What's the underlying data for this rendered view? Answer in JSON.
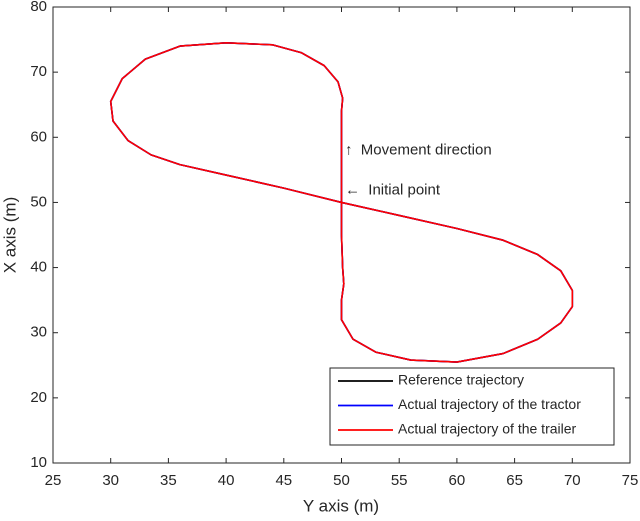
{
  "chart_data": {
    "type": "line",
    "x_label": "Y axis (m)",
    "y_label": "X axis (m)",
    "xlim": [
      25,
      75
    ],
    "xticks": [
      25,
      30,
      35,
      40,
      45,
      50,
      55,
      60,
      65,
      70,
      75
    ],
    "ylim": [
      10,
      80
    ],
    "yticks": [
      10,
      20,
      30,
      40,
      50,
      60,
      70,
      80
    ],
    "legend": "lower right",
    "grid": false,
    "annotations": [
      "↑  Movement direction",
      "←  Initial point"
    ],
    "x": [
      50,
      50,
      50,
      50,
      50.1,
      49.7,
      48.5,
      46.5,
      44,
      40,
      36,
      33,
      31,
      30,
      30.2,
      31.5,
      33.5,
      36,
      40,
      45,
      50,
      55,
      60,
      64,
      67,
      69,
      70,
      70,
      69,
      67,
      64,
      60,
      56,
      53,
      51,
      50,
      50,
      50.2,
      50.1,
      50,
      50
    ],
    "series": [
      {
        "name": "Reference trajectory",
        "color": "#000000",
        "values": [
          50,
          55,
          60,
          64,
          66,
          68.5,
          71,
          73,
          74.2,
          74.5,
          74,
          72,
          69,
          65.5,
          62.5,
          59.5,
          57.3,
          55.8,
          54.2,
          52.2,
          50,
          48,
          46,
          44.2,
          42,
          39.5,
          36.5,
          34,
          31.5,
          29,
          26.8,
          25.5,
          25.8,
          27,
          29,
          32,
          35,
          37.5,
          40,
          45,
          50
        ]
      },
      {
        "name": "Actual trajectory of the tractor",
        "color": "#0000ff",
        "values": [
          50,
          55,
          60,
          64,
          66,
          68.5,
          71,
          73,
          74.2,
          74.5,
          74,
          72,
          69,
          65.5,
          62.5,
          59.5,
          57.3,
          55.8,
          54.2,
          52.2,
          50,
          48,
          46,
          44.2,
          42,
          39.5,
          36.5,
          34,
          31.5,
          29,
          26.8,
          25.5,
          25.8,
          27,
          29,
          32,
          35,
          37.5,
          40,
          45,
          50
        ]
      },
      {
        "name": "Actual trajectory of the trailer",
        "color": "#ff0000",
        "values": [
          50,
          55,
          60,
          64,
          66,
          68.5,
          71,
          73,
          74.2,
          74.5,
          74,
          72,
          69,
          65.5,
          62.5,
          59.5,
          57.3,
          55.8,
          54.2,
          52.2,
          50,
          48,
          46,
          44.2,
          42,
          39.5,
          36.5,
          34,
          31.5,
          29,
          26.8,
          25.5,
          25.8,
          27,
          29,
          32,
          35,
          37.5,
          40,
          45,
          50
        ]
      }
    ]
  }
}
